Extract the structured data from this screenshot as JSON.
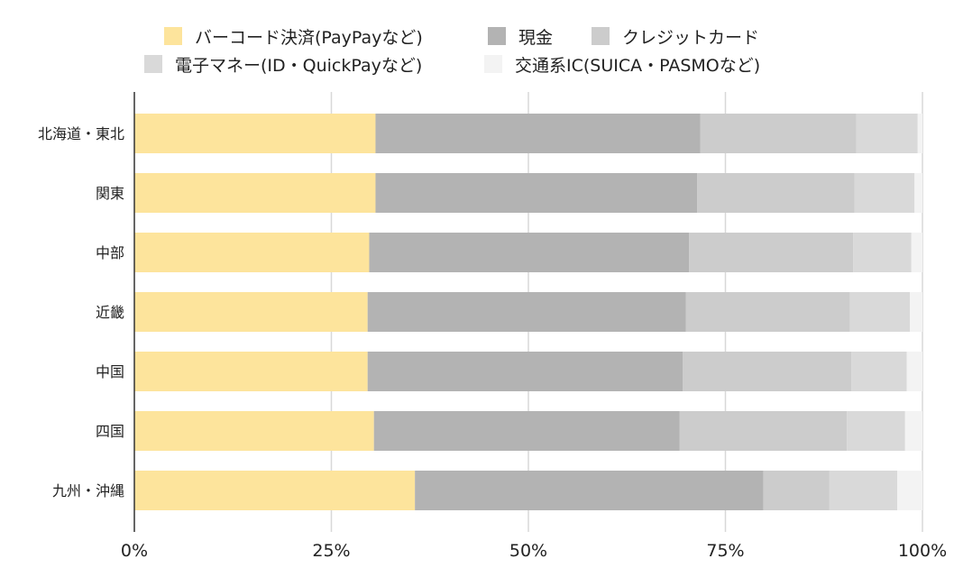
{
  "chart_data": {
    "type": "bar",
    "orientation": "horizontal",
    "stacked": "percent",
    "categories": [
      "北海道・東北",
      "関東",
      "中部",
      "近畿",
      "中国",
      "四国",
      "九州・沖縄"
    ],
    "series": [
      {
        "name": "バーコード決済(PayPayなど)",
        "color": "#fde49c",
        "values": [
          30.6,
          30.6,
          29.8,
          29.6,
          29.6,
          30.4,
          35.6
        ]
      },
      {
        "name": "現金",
        "color": "#b3b3b3",
        "values": [
          41.2,
          40.8,
          40.6,
          40.4,
          40.0,
          38.8,
          44.2
        ]
      },
      {
        "name": "クレジットカード",
        "color": "#cccccc",
        "values": [
          19.8,
          20.0,
          20.8,
          20.8,
          21.4,
          21.2,
          8.4
        ]
      },
      {
        "name": "電子マネー(ID・QuickPayなど)",
        "color": "#d9d9d9",
        "values": [
          7.8,
          7.6,
          7.4,
          7.6,
          7.0,
          7.4,
          8.6
        ]
      },
      {
        "name": "交通系IC(SUICA・PASMOなど)",
        "color": "#f3f3f3",
        "values": [
          0.6,
          1.0,
          1.4,
          1.6,
          2.0,
          2.2,
          3.2
        ]
      }
    ],
    "xticks": [
      "0%",
      "25%",
      "50%",
      "75%",
      "100%"
    ],
    "xlim": [
      0,
      100
    ],
    "grid": true,
    "legend_position": "top"
  }
}
